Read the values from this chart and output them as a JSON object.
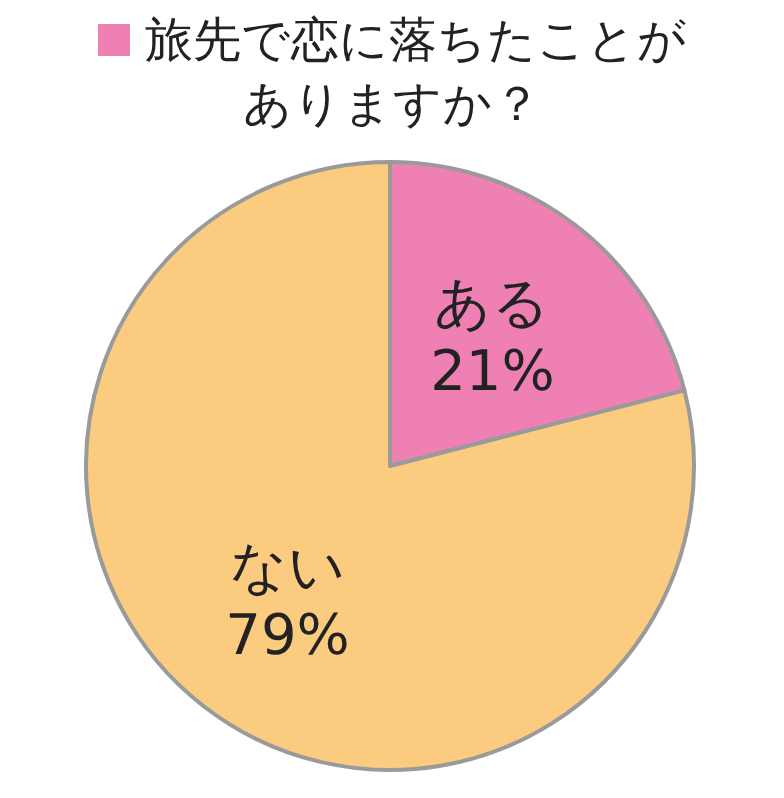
{
  "chart_data": {
    "type": "pie",
    "title": "旅先で恋に落ちたことがありますか？",
    "categories": [
      "ある",
      "ない"
    ],
    "values": [
      21,
      79
    ],
    "value_labels": [
      "21%",
      "79%"
    ],
    "colors": [
      "#ee80b3",
      "#fbcb80"
    ]
  }
}
